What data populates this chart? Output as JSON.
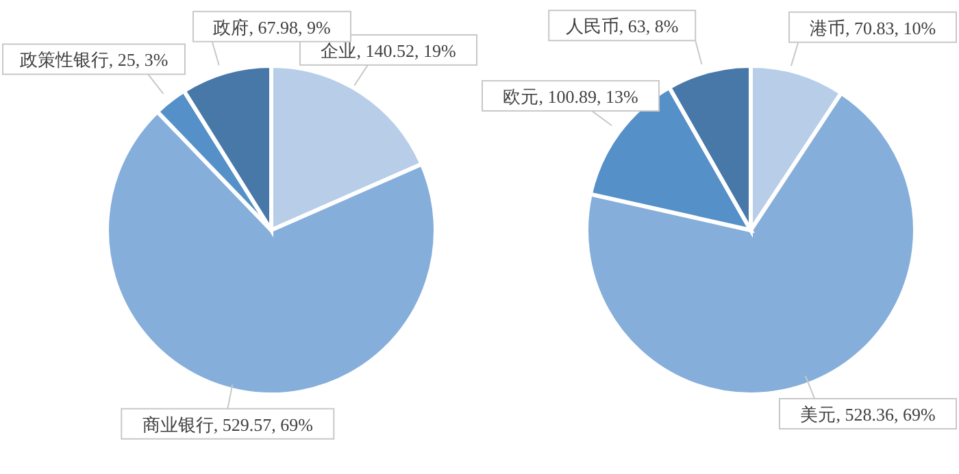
{
  "chart_data": [
    {
      "type": "pie",
      "categories": [
        "企业",
        "商业银行",
        "政策性银行",
        "政府"
      ],
      "values": [
        140.52,
        529.57,
        25,
        67.98
      ],
      "colors": [
        "#b8cde8",
        "#85aedb",
        "#5590c8",
        "#4878a8"
      ],
      "value_labels": [
        "140.52, 19%",
        "529.57, 69%",
        "25, 3%",
        "67.98, 9%"
      ]
    },
    {
      "type": "pie",
      "categories": [
        "港币",
        "美元",
        "欧元",
        "人民币"
      ],
      "values": [
        70.83,
        528.36,
        100.89,
        63
      ],
      "colors": [
        "#b8cde8",
        "#85aedb",
        "#5590c8",
        "#4878a8"
      ],
      "value_labels": [
        "70.83, 10%",
        "528.36, 69%",
        "100.89, 13%",
        "63, 8%"
      ]
    }
  ]
}
